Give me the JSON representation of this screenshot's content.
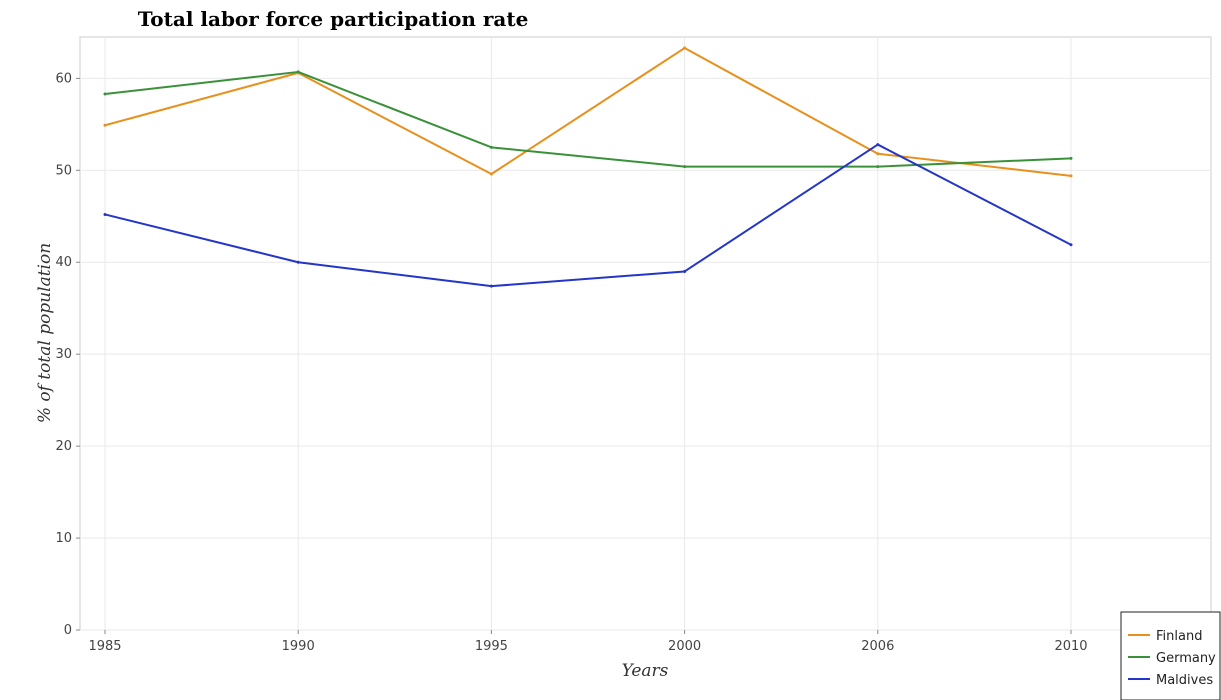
{
  "chart_data": {
    "type": "line",
    "title": "Total labor force participation rate",
    "xlabel": "Years",
    "ylabel": "% of total population",
    "categories": [
      "1985",
      "1990",
      "1995",
      "2000",
      "2006",
      "2010"
    ],
    "ylim": [
      0,
      64.5
    ],
    "yticks": [
      0,
      10,
      20,
      30,
      40,
      50,
      60
    ],
    "grid": true,
    "legend_position": "bottom-right",
    "series": [
      {
        "name": "Finland",
        "color": "#e8901c",
        "values": [
          54.9,
          60.6,
          49.6,
          63.3,
          51.8,
          49.4
        ]
      },
      {
        "name": "Germany",
        "color": "#3a913a",
        "values": [
          58.3,
          60.7,
          52.5,
          50.4,
          50.4,
          51.3
        ]
      },
      {
        "name": "Maldives",
        "color": "#2435c9",
        "values": [
          45.2,
          40.0,
          37.4,
          39.0,
          52.8,
          41.9
        ]
      }
    ]
  }
}
